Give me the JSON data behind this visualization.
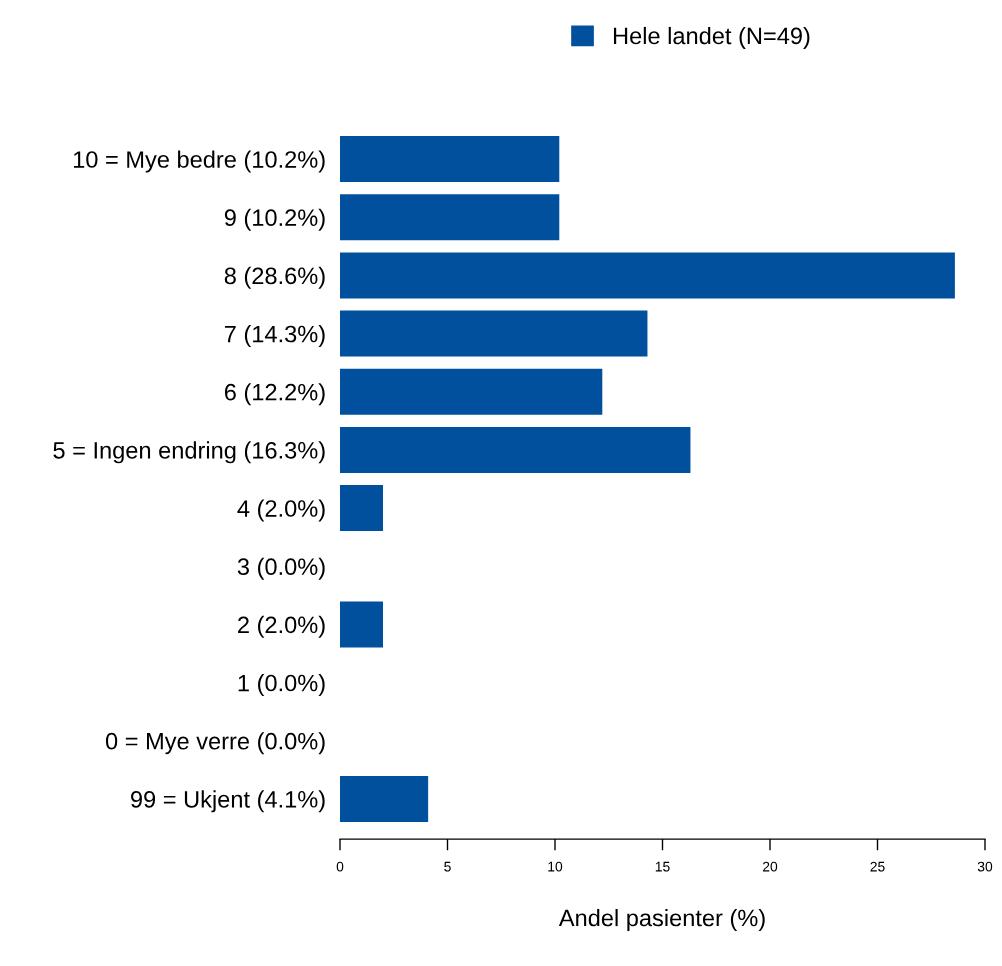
{
  "chart_data": {
    "type": "bar",
    "orientation": "horizontal",
    "categories": [
      "10 = Mye bedre (10.2%)",
      "9 (10.2%)",
      "8 (28.6%)",
      "7 (14.3%)",
      "6 (12.2%)",
      "5 = Ingen endring (16.3%)",
      "4 (2.0%)",
      "3 (0.0%)",
      "2 (2.0%)",
      "1 (0.0%)",
      "0 = Mye verre (0.0%)",
      "99 = Ukjent (4.1%)"
    ],
    "series": [
      {
        "name": "Hele landet (N=49)",
        "color": "#00509e",
        "values": [
          10.2,
          10.2,
          28.6,
          14.3,
          12.2,
          16.3,
          2.0,
          0.0,
          2.0,
          0.0,
          0.0,
          4.1
        ]
      }
    ],
    "xlim": [
      0,
      30
    ],
    "xticks": [
      0,
      5,
      10,
      15,
      20,
      25,
      30
    ],
    "xlabel": "Andel pasienter (%)",
    "legend": "top",
    "grid": false
  }
}
